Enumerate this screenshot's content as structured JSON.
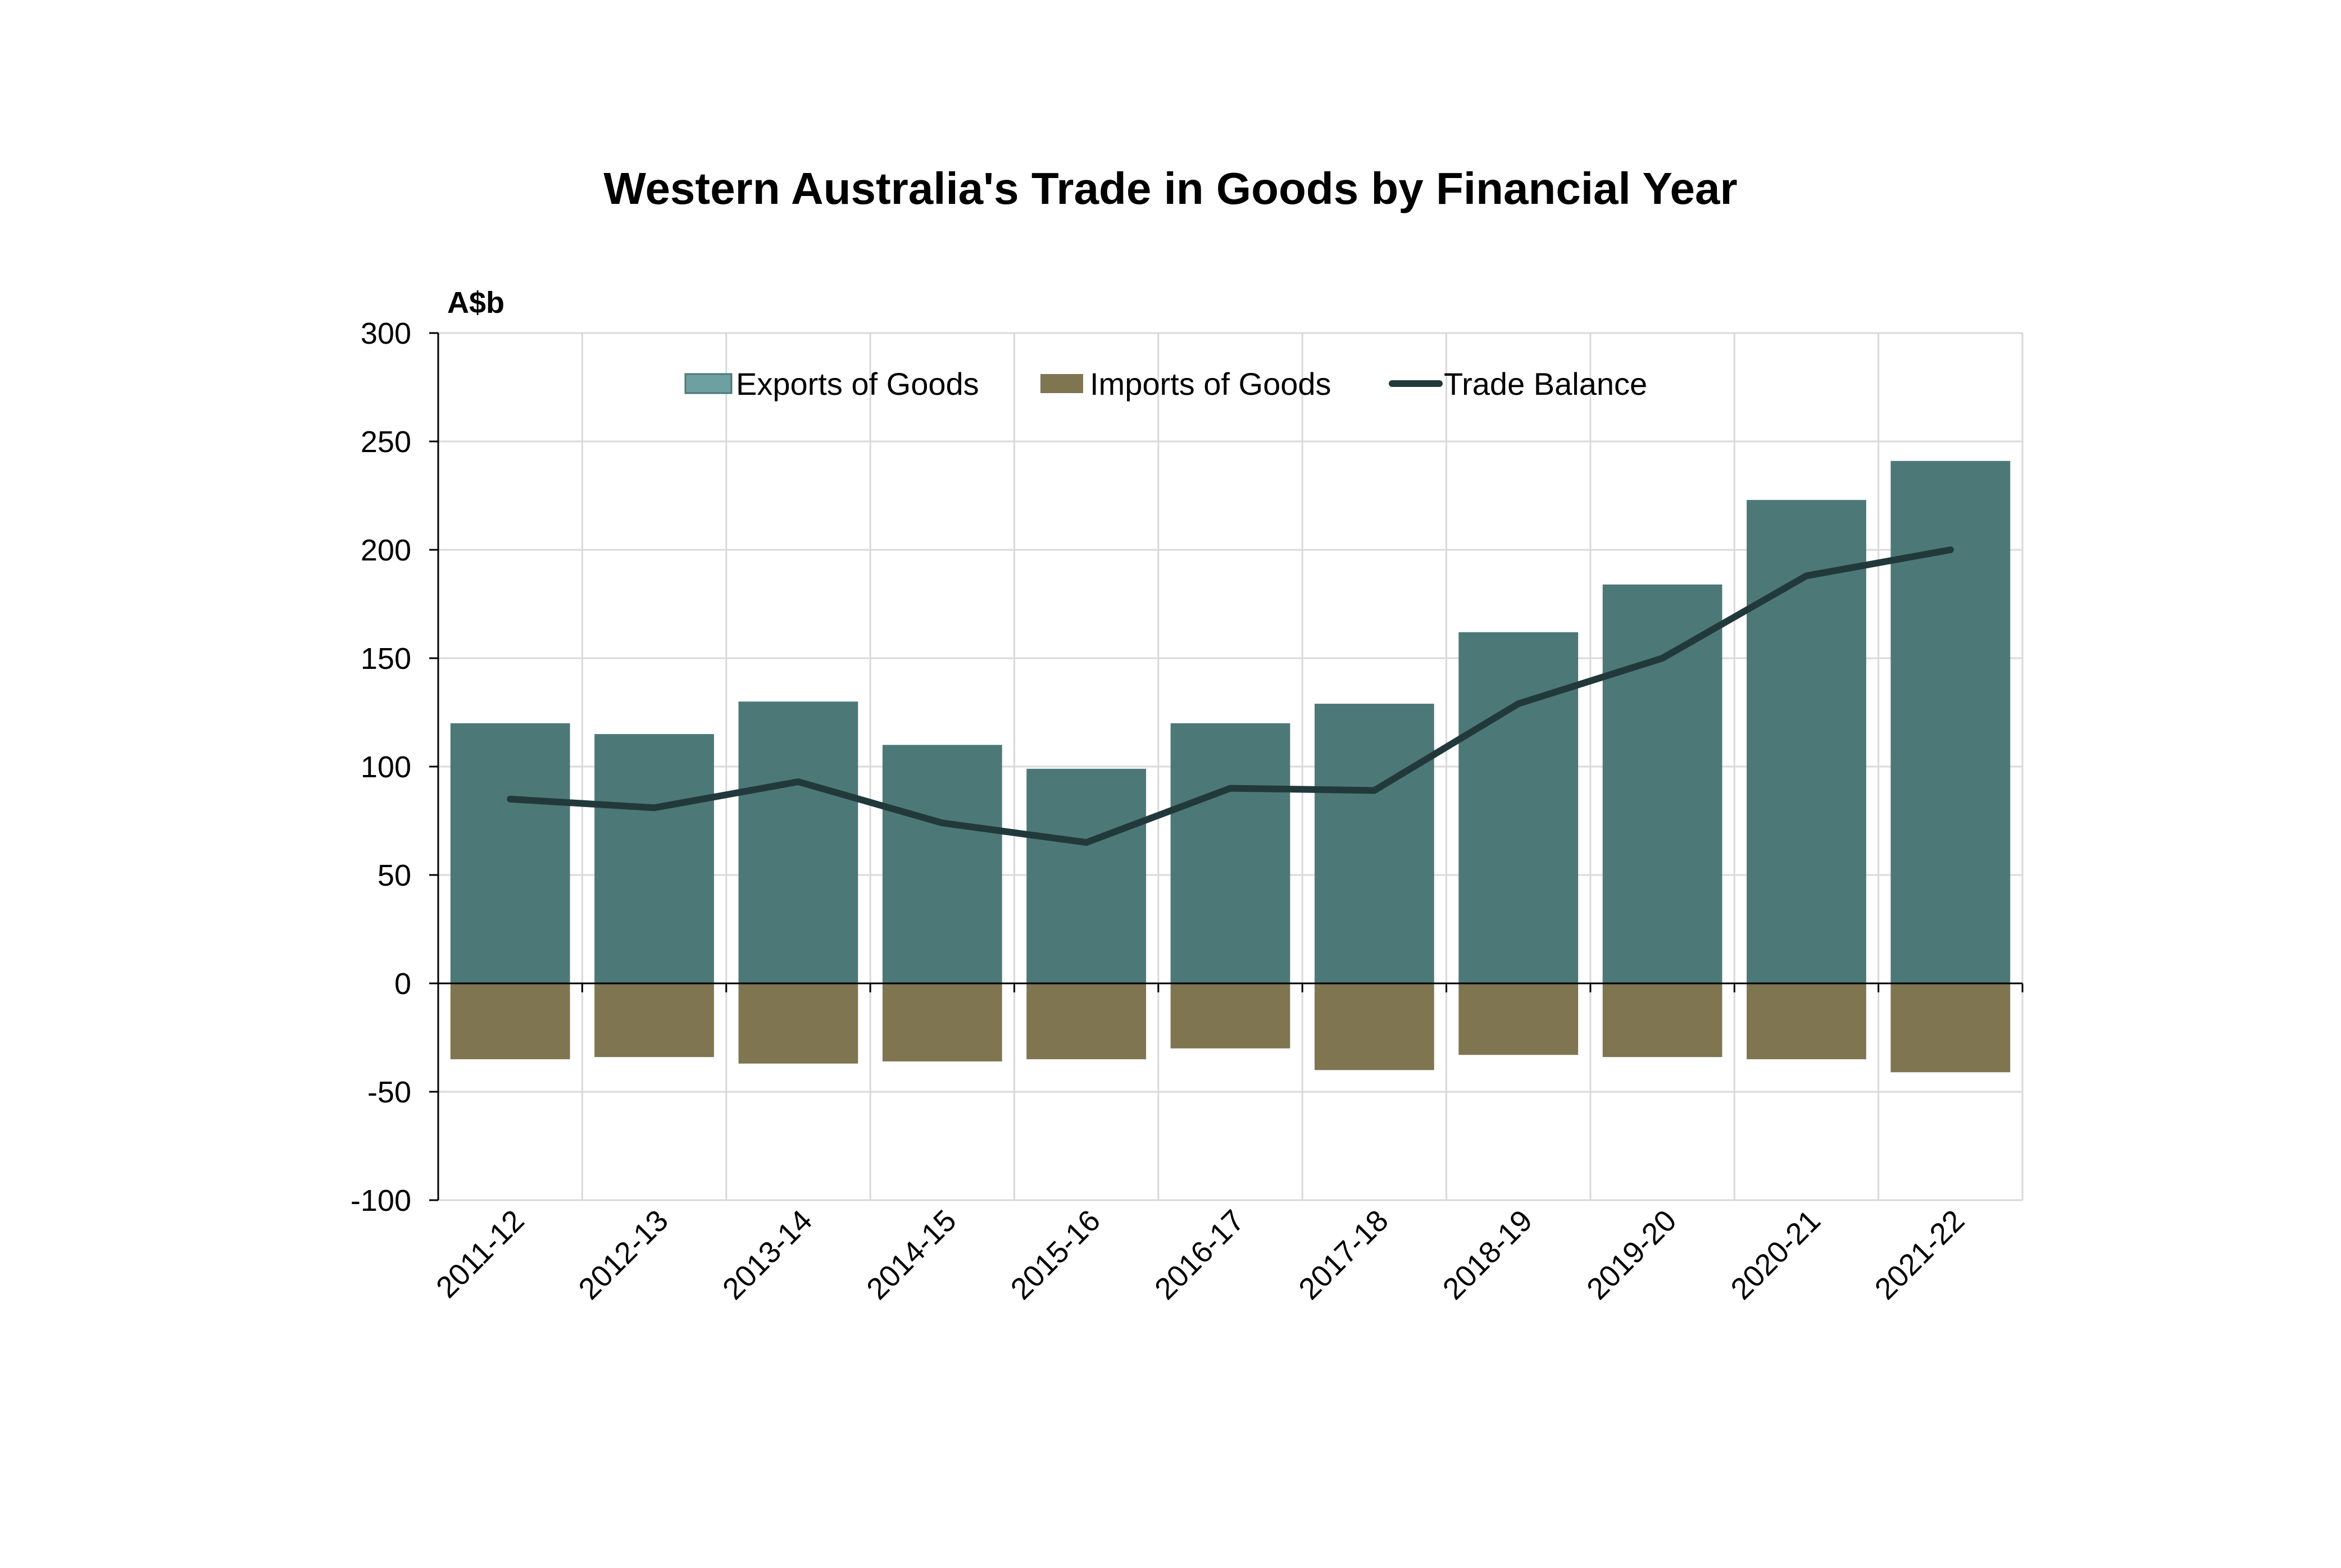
{
  "chart_data": {
    "type": "bar",
    "title": "Western Australia's Trade in Goods by Financial Year",
    "ylabel": "A$b",
    "xlabel": "",
    "ylim": [
      -100,
      300
    ],
    "yticks": [
      300,
      250,
      200,
      150,
      100,
      50,
      0,
      -50,
      -100
    ],
    "grid": true,
    "legend_position": "top-center",
    "categories": [
      "2011-12",
      "2012-13",
      "2013-14",
      "2014-15",
      "2015-16",
      "2016-17",
      "2017-18",
      "2018-19",
      "2019-20",
      "2020-21",
      "2021-22"
    ],
    "series": [
      {
        "name": "Exports of Goods",
        "type": "bar",
        "color": "#4d7878",
        "values": [
          120,
          115,
          130,
          110,
          99,
          120,
          129,
          162,
          184,
          223,
          241
        ]
      },
      {
        "name": "Imports of Goods",
        "type": "bar",
        "color": "#7f7550",
        "values": [
          -35,
          -34,
          -37,
          -36,
          -35,
          -30,
          -40,
          -33,
          -34,
          -35,
          -41
        ]
      },
      {
        "name": "Trade Balance",
        "type": "line",
        "color": "#22393b",
        "values": [
          85,
          81,
          93,
          74,
          65,
          90,
          89,
          129,
          150,
          188,
          200
        ]
      }
    ]
  }
}
